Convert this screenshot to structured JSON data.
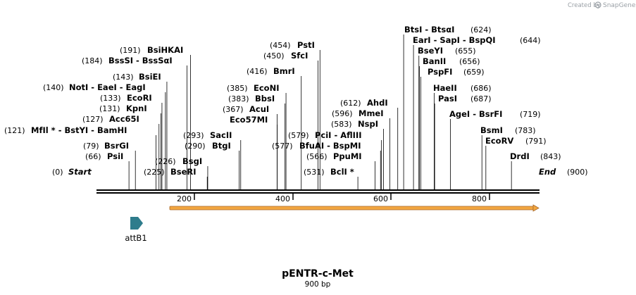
{
  "credit": {
    "prefix": "Created by",
    "brand": "SnapGene"
  },
  "map": {
    "name": "pENTR-c-Met",
    "size_label": "900 bp",
    "length": 900,
    "start_label": "Start",
    "start_pos": "(0)",
    "end_label": "End",
    "end_pos": "(900)",
    "ruler_ticks": [
      "200",
      "400",
      "600",
      "800"
    ]
  },
  "colors": {
    "backbone": "#000000",
    "orf_fill": "#f2a640",
    "orf_edge": "#a7682a",
    "attb1_fill": "#2e7c8c"
  },
  "features": [
    {
      "name": "attB1",
      "start": 150,
      "end": 175,
      "type": "arrow",
      "icon": "right-arrow-icon"
    },
    {
      "name": "",
      "start": 150,
      "end": 900,
      "type": "orf",
      "icon": "orf-arrow-icon"
    }
  ],
  "sites": [
    {
      "pos": "(0)",
      "name": "Start",
      "cut": 0
    },
    {
      "pos": "(66)",
      "name": "PsiI",
      "cut": 66
    },
    {
      "pos": "(79)",
      "name": "BsrGI",
      "cut": 79
    },
    {
      "pos": "(121)",
      "name": "MfIl * - BstYI - BamHI",
      "cut": 121
    },
    {
      "pos": "(127)",
      "name": "Acc65I",
      "cut": 127
    },
    {
      "pos": "(131)",
      "name": "KpnI",
      "cut": 131
    },
    {
      "pos": "(133)",
      "name": "EcoRI",
      "cut": 133
    },
    {
      "pos": "(140)",
      "name": "NotI - EaeI - EagI",
      "cut": 140
    },
    {
      "pos": "(143)",
      "name": "BsiEI",
      "cut": 143
    },
    {
      "pos": "(184)",
      "name": "BssSI - BssSαI",
      "cut": 184
    },
    {
      "pos": "(191)",
      "name": "BsiHKAI",
      "cut": 191
    },
    {
      "pos": "(225)",
      "name": "BseRI",
      "cut": 225
    },
    {
      "pos": "(226)",
      "name": "BsgI",
      "cut": 226
    },
    {
      "pos": "(290)",
      "name": "BtgI",
      "cut": 290
    },
    {
      "pos": "(293)",
      "name": "SacII",
      "cut": 293
    },
    {
      "pos": "(367)",
      "name": "AcuI",
      "cut": 367
    },
    {
      "pos": "Eco57MI",
      "name": "",
      "cut": 367
    },
    {
      "pos": "(383)",
      "name": "BbsI",
      "cut": 383
    },
    {
      "pos": "(385)",
      "name": "EcoNI",
      "cut": 385
    },
    {
      "pos": "(416)",
      "name": "BmrI",
      "cut": 416
    },
    {
      "pos": "(450)",
      "name": "SfcI",
      "cut": 450
    },
    {
      "pos": "(454)",
      "name": "PstI",
      "cut": 454
    },
    {
      "pos": "(531)",
      "name": "BclI *",
      "cut": 531
    },
    {
      "pos": "(566)",
      "name": "PpuMI",
      "cut": 566
    },
    {
      "pos": "(577)",
      "name": "BfuAI - BspMI",
      "cut": 577
    },
    {
      "pos": "(579)",
      "name": "PciI - AflIII",
      "cut": 579
    },
    {
      "pos": "(583)",
      "name": "NspI",
      "cut": 583
    },
    {
      "pos": "(596)",
      "name": "MmeI",
      "cut": 596
    },
    {
      "pos": "(612)",
      "name": "AhdI",
      "cut": 612
    },
    {
      "pos": "(624)",
      "name": "BtsI - BtsαI",
      "cut": 624
    },
    {
      "pos": "(644)",
      "name": "EarI - SapI - BspQI",
      "cut": 644
    },
    {
      "pos": "(655)",
      "name": "BseYI",
      "cut": 655
    },
    {
      "pos": "(656)",
      "name": "BanII",
      "cut": 656
    },
    {
      "pos": "(659)",
      "name": "PspFI",
      "cut": 659
    },
    {
      "pos": "(686)",
      "name": "HaeII",
      "cut": 686
    },
    {
      "pos": "(687)",
      "name": "PasI",
      "cut": 687
    },
    {
      "pos": "(719)",
      "name": "AgeI - BsrFI",
      "cut": 719
    },
    {
      "pos": "(783)",
      "name": "BsmI",
      "cut": 783
    },
    {
      "pos": "(791)",
      "name": "EcoRV",
      "cut": 791
    },
    {
      "pos": "(843)",
      "name": "DrdI",
      "cut": 843
    },
    {
      "pos": "(900)",
      "name": "End",
      "cut": 900
    }
  ]
}
